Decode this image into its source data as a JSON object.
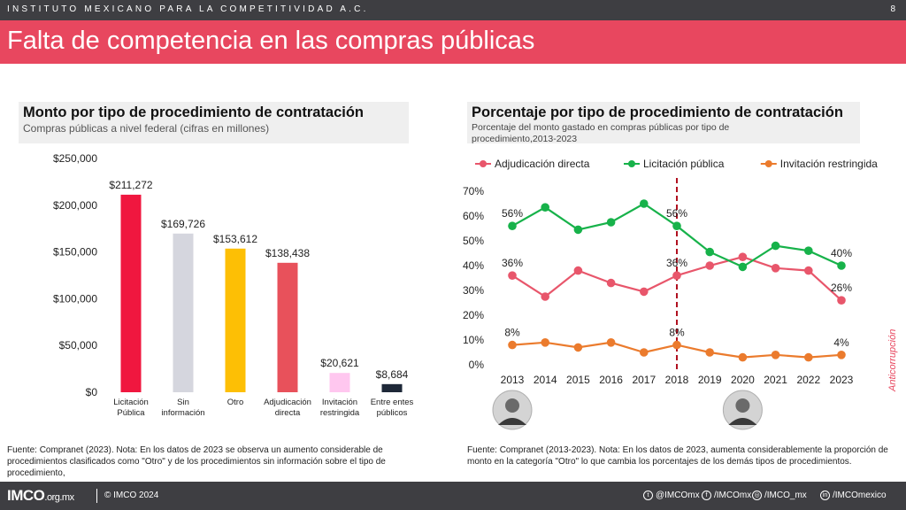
{
  "header": {
    "org": "INSTITUTO MEXICANO PARA LA COMPETITIVIDAD A.C.",
    "page_number": "8"
  },
  "title": "Falta de competencia en las compras públicas",
  "colors": {
    "accent": "#e8475f",
    "dark": "#3e3e42"
  },
  "left_panel": {
    "title": "Monto por tipo de procedimiento de contratación",
    "subtitle": "Compras públicas a nivel federal (cifras en millones)",
    "note": "Fuente: Compranet (2023). Nota: En los datos de 2023 se observa un aumento considerable de procedimientos clasificados como \"Otro\" y de los procedimientos sin información sobre el tipo de procedimiento,"
  },
  "right_panel": {
    "title": "Porcentaje por tipo de procedimiento de contratación",
    "subtitle": "Porcentaje del monto gastado en compras públicas  por tipo de procedimiento,2013-2023",
    "note": "Fuente: Compranet (2013-2023). Nota: En los datos de 2023, aumenta considerablemente la proporción de monto en la categoría \"Otro\" lo que cambia los porcentajes de los demás tipos de procedimientos.",
    "portraits": [
      {
        "icon": "president-portrait-2013-icon",
        "year": 2013
      },
      {
        "icon": "president-portrait-2020-icon",
        "year": 2020
      }
    ]
  },
  "side_tag": "Anticorrupción",
  "chart_data": [
    {
      "type": "bar",
      "categories": [
        "Licitación Pública",
        "Sin información",
        "Otro",
        "Adjudicación directa",
        "Invitación restringida",
        "Entre entes públicos"
      ],
      "values": [
        211272,
        169726,
        153612,
        138438,
        20621,
        8684
      ],
      "value_labels": [
        "$211,272",
        "$169,726",
        "$153,612",
        "$138,438",
        "$20,621",
        "$8,684"
      ],
      "colors": [
        "#f0173f",
        "#d5d6de",
        "#fdbf05",
        "#e8515b",
        "#ffc7ef",
        "#1e2838"
      ],
      "ylim": [
        0,
        250000
      ],
      "yticks": [
        0,
        50000,
        100000,
        150000,
        200000,
        250000
      ],
      "ytick_labels": [
        "$0",
        "$50,000",
        "$100,000",
        "$150,000",
        "$200,000",
        "$250,000"
      ],
      "title": "Monto por tipo de procedimiento de contratación",
      "xlabel": "",
      "ylabel": "",
      "grid": false
    },
    {
      "type": "line",
      "x": [
        2013,
        2014,
        2015,
        2016,
        2017,
        2018,
        2019,
        2020,
        2021,
        2022,
        2023
      ],
      "ylim": [
        0,
        0.7
      ],
      "yticks": [
        0,
        0.1,
        0.2,
        0.3,
        0.4,
        0.5,
        0.6,
        0.7
      ],
      "ytick_labels": [
        "0%",
        "10%",
        "20%",
        "30%",
        "40%",
        "50%",
        "60%",
        "70%"
      ],
      "series": [
        {
          "name": "Adjudicación directa",
          "color": "#e8566b",
          "values": [
            0.36,
            0.275,
            0.38,
            0.33,
            0.295,
            0.36,
            0.4,
            0.435,
            0.39,
            0.38,
            0.26
          ],
          "labels": [
            {
              "index": 0,
              "text": "36%"
            },
            {
              "index": 5,
              "text": "36%"
            },
            {
              "index": 10,
              "text": "26%"
            }
          ]
        },
        {
          "name": "Licitación pública",
          "color": "#17b24a",
          "values": [
            0.56,
            0.635,
            0.545,
            0.575,
            0.65,
            0.56,
            0.455,
            0.395,
            0.48,
            0.46,
            0.4
          ],
          "labels": [
            {
              "index": 0,
              "text": "56%"
            },
            {
              "index": 5,
              "text": "56%"
            },
            {
              "index": 10,
              "text": "40%"
            }
          ]
        },
        {
          "name": "Invitación restringida",
          "color": "#eb7b2d",
          "values": [
            0.08,
            0.09,
            0.07,
            0.09,
            0.05,
            0.08,
            0.05,
            0.03,
            0.04,
            0.03,
            0.04
          ],
          "labels": [
            {
              "index": 0,
              "text": "8%"
            },
            {
              "index": 5,
              "text": "8%"
            },
            {
              "index": 10,
              "text": "4%"
            }
          ]
        }
      ],
      "marker_line": {
        "x": 2018,
        "color": "#b01020",
        "style": "dashed"
      },
      "legend_position": "top",
      "title": "Porcentaje por tipo de procedimiento de contratación",
      "xlabel": "",
      "ylabel": "",
      "grid": false
    }
  ],
  "footer": {
    "logo": "IMCO",
    "logo_domain": ".org.mx",
    "copyright": "© IMCO 2024",
    "social": [
      {
        "icon": "twitter-icon",
        "glyph": "t",
        "label": "@IMCOmx"
      },
      {
        "icon": "facebook-icon",
        "glyph": "f",
        "label": "/IMCOmx"
      },
      {
        "icon": "instagram-icon",
        "glyph": "◎",
        "label": "/IMCO_mx"
      },
      {
        "icon": "linkedin-icon",
        "glyph": "in",
        "label": "/IMCOmexico"
      }
    ]
  }
}
